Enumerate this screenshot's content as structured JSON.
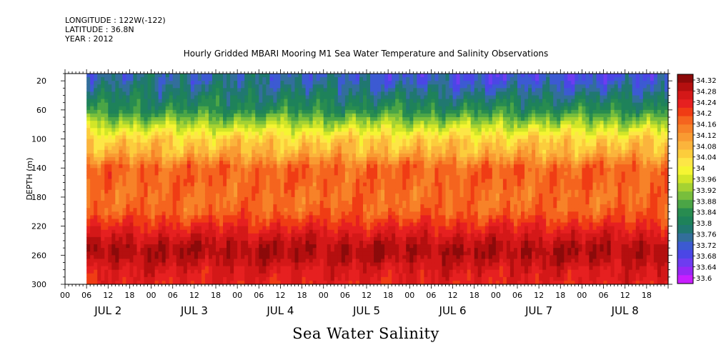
{
  "header": {
    "longitude": "LONGITUDE : 122W(-122)",
    "latitude": "LATITUDE : 36.8N",
    "year": "YEAR : 2012"
  },
  "chart_data": {
    "type": "heatmap",
    "title": "Hourly Gridded MBARI Mooring M1 Sea Water Temperature and Salinity Observations",
    "subtitle": "Sea Water Salinity",
    "xlabel": "",
    "ylabel": "DEPTH (m)",
    "x_range_hours": [
      0,
      168
    ],
    "data_start_hour": 6,
    "y_range": [
      10,
      300
    ],
    "y_ticks": [
      20,
      60,
      100,
      140,
      180,
      220,
      260,
      300
    ],
    "x_hour_ticks": [
      "00",
      "06",
      "12",
      "18",
      "00",
      "06",
      "12",
      "18",
      "00",
      "06",
      "12",
      "18",
      "00",
      "06",
      "12",
      "18",
      "00",
      "06",
      "12",
      "18",
      "00",
      "06",
      "12",
      "18",
      "00",
      "06",
      "12",
      "18"
    ],
    "x_day_labels": [
      "JUL 2",
      "JUL 3",
      "JUL 4",
      "JUL 5",
      "JUL 6",
      "JUL 7",
      "JUL 8"
    ],
    "depth_profile": {
      "depths": [
        10,
        20,
        40,
        60,
        80,
        100,
        120,
        130,
        140,
        160,
        180,
        200,
        220,
        240,
        250,
        260,
        280,
        300
      ],
      "values": [
        33.76,
        33.76,
        33.8,
        33.84,
        33.94,
        34.04,
        34.08,
        34.12,
        34.16,
        34.16,
        34.15,
        34.16,
        34.21,
        34.26,
        34.28,
        34.28,
        34.24,
        34.22
      ]
    },
    "colorbar": {
      "labels": [
        "34.32",
        "34.28",
        "34.24",
        "34.2",
        "34.16",
        "34.12",
        "34.08",
        "34.04",
        "34",
        "33.96",
        "33.92",
        "33.88",
        "33.84",
        "33.8",
        "33.76",
        "33.72",
        "33.68",
        "33.64",
        "33.6"
      ],
      "colors": [
        "#8c0a0a",
        "#b40f0f",
        "#d41818",
        "#e62020",
        "#f03c14",
        "#f5641e",
        "#f78228",
        "#f99b32",
        "#fbb43c",
        "#fccd3c",
        "#fde646",
        "#f5f532",
        "#d2e628",
        "#a5d232",
        "#78be3c",
        "#4ba546",
        "#288c50",
        "#1e825a",
        "#207870",
        "#326e9b",
        "#3c5ad2",
        "#4b46e6",
        "#6e3cf0",
        "#9628f5",
        "#c81eff"
      ],
      "vmin": 33.6,
      "vmax": 34.32
    }
  }
}
